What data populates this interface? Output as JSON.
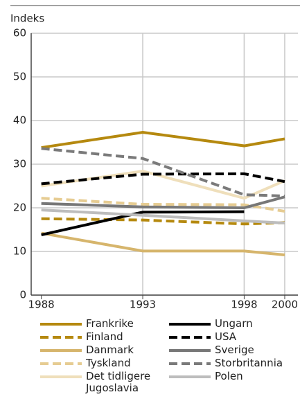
{
  "chart_data": {
    "type": "line",
    "y_label": "Indeks",
    "x": [
      1988,
      1993,
      1998,
      2000
    ],
    "xlim": [
      1987.5,
      2000.65
    ],
    "xticks": [
      1988,
      1993,
      1998,
      2000
    ],
    "ylim": [
      0,
      60
    ],
    "yticks": [
      0,
      10,
      20,
      30,
      40,
      50,
      60
    ],
    "grid": true,
    "series": [
      {
        "name": "Frankrike",
        "color": "#b5890f",
        "dashed": false,
        "values": [
          33.8,
          37.3,
          34.2,
          35.8
        ]
      },
      {
        "name": "Finland",
        "color": "#b5890f",
        "dashed": true,
        "values": [
          17.5,
          17.2,
          16.3,
          16.6
        ]
      },
      {
        "name": "Danmark",
        "color": "#d6b56c",
        "dashed": false,
        "values": [
          14.2,
          10.1,
          10.1,
          9.2
        ]
      },
      {
        "name": "Tyskland",
        "color": "#e6cc92",
        "dashed": true,
        "values": [
          22.2,
          20.8,
          20.7,
          19.2
        ]
      },
      {
        "name": "Det tidligere Jugoslavia",
        "color": "#efdfbb",
        "dashed": false,
        "values": [
          25.0,
          28.4,
          22.2,
          26.2
        ]
      },
      {
        "name": "Ungarn",
        "color": "#000000",
        "dashed": false,
        "values": [
          13.8,
          19.0,
          19.1,
          null
        ]
      },
      {
        "name": "USA",
        "color": "#000000",
        "dashed": true,
        "values": [
          25.5,
          27.7,
          27.8,
          26.0
        ]
      },
      {
        "name": "Sverige",
        "color": "#777777",
        "dashed": false,
        "values": [
          21.0,
          20.2,
          20.0,
          22.5
        ]
      },
      {
        "name": "Storbritannia",
        "color": "#7a7a7a",
        "dashed": true,
        "values": [
          33.6,
          31.3,
          23.0,
          22.7
        ]
      },
      {
        "name": "Polen",
        "color": "#bdbdbd",
        "dashed": false,
        "values": [
          19.5,
          18.3,
          17.0,
          16.5
        ]
      }
    ]
  }
}
